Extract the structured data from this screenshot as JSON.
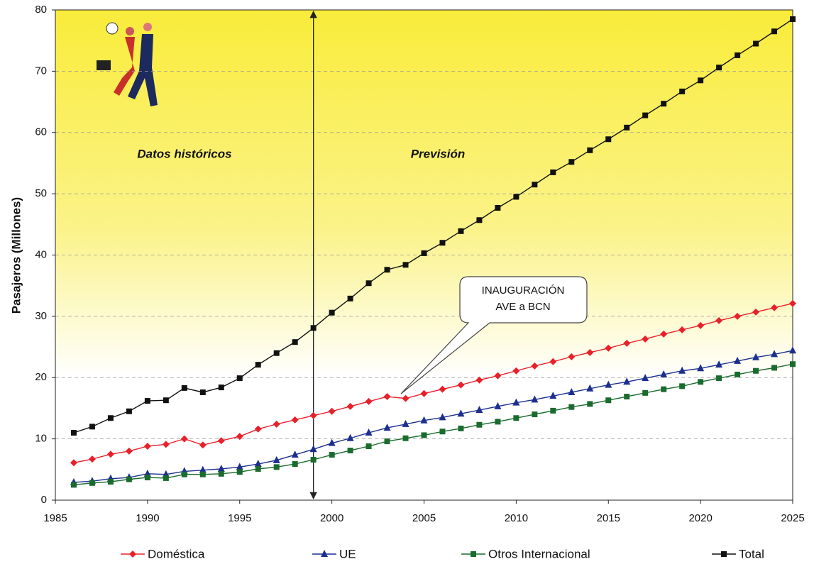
{
  "chart_data": {
    "type": "line",
    "y_label": "Pasajeros (Millones)",
    "annotations": [
      "Datos históricos",
      "Previsión"
    ],
    "callout": [
      "INAUGURACIÓN",
      "AVE a BCN"
    ],
    "forecast_start": 1999,
    "x": [
      1986,
      1987,
      1988,
      1989,
      1990,
      1991,
      1992,
      1993,
      1994,
      1995,
      1996,
      1997,
      1998,
      1999,
      2000,
      2001,
      2002,
      2003,
      2004,
      2005,
      2006,
      2007,
      2008,
      2009,
      2010,
      2011,
      2012,
      2013,
      2014,
      2015,
      2016,
      2017,
      2018,
      2019,
      2020,
      2021,
      2022,
      2023,
      2024,
      2025
    ],
    "series": [
      {
        "name": "Doméstica",
        "color": "#e8202a",
        "marker": "diamond",
        "values": [
          6.1,
          6.7,
          7.5,
          8.0,
          8.8,
          9.1,
          10.0,
          9.0,
          9.7,
          10.4,
          11.6,
          12.4,
          13.1,
          13.8,
          14.5,
          15.3,
          16.1,
          16.9,
          16.6,
          17.4,
          18.1,
          18.8,
          19.6,
          20.3,
          21.1,
          21.9,
          22.6,
          23.4,
          24.1,
          24.8,
          25.6,
          26.3,
          27.1,
          27.8,
          28.5,
          29.3,
          30.0,
          30.7,
          31.4,
          32.1
        ]
      },
      {
        "name": "UE",
        "color": "#1c2f8f",
        "marker": "triangle",
        "values": [
          2.9,
          3.1,
          3.5,
          3.7,
          4.3,
          4.2,
          4.7,
          4.9,
          5.1,
          5.4,
          5.9,
          6.5,
          7.4,
          8.3,
          9.3,
          10.1,
          11.0,
          11.8,
          12.4,
          13.0,
          13.5,
          14.1,
          14.7,
          15.3,
          15.9,
          16.4,
          17.0,
          17.6,
          18.2,
          18.8,
          19.3,
          19.9,
          20.5,
          21.1,
          21.5,
          22.1,
          22.7,
          23.3,
          23.8,
          24.4
        ]
      },
      {
        "name": "Otros Internacional",
        "color": "#1a6b2e",
        "marker": "square",
        "values": [
          2.5,
          2.8,
          3.0,
          3.4,
          3.7,
          3.6,
          4.2,
          4.2,
          4.3,
          4.6,
          5.1,
          5.4,
          5.9,
          6.6,
          7.4,
          8.1,
          8.8,
          9.6,
          10.1,
          10.6,
          11.2,
          11.7,
          12.3,
          12.8,
          13.4,
          14.0,
          14.6,
          15.2,
          15.7,
          16.3,
          16.9,
          17.5,
          18.1,
          18.6,
          19.3,
          19.9,
          20.5,
          21.1,
          21.6,
          22.2
        ]
      },
      {
        "name": "Total",
        "color": "#111111",
        "marker": "square",
        "values": [
          11.0,
          12.0,
          13.4,
          14.5,
          16.2,
          16.3,
          18.3,
          17.6,
          18.4,
          19.9,
          22.1,
          24.0,
          25.8,
          28.1,
          30.6,
          32.9,
          35.4,
          37.6,
          38.4,
          40.3,
          42.0,
          43.9,
          45.7,
          47.7,
          49.5,
          51.5,
          53.5,
          55.2,
          57.1,
          58.9,
          60.8,
          62.8,
          64.7,
          66.7,
          68.5,
          70.6,
          72.6,
          74.5,
          76.5,
          78.5
        ]
      }
    ],
    "xlim": [
      1985,
      2025
    ],
    "xticks": [
      1985,
      1990,
      1995,
      2000,
      2005,
      2010,
      2015,
      2020,
      2025
    ],
    "ylim": [
      0,
      80
    ],
    "yticks": [
      0,
      10,
      20,
      30,
      40,
      50,
      60,
      70,
      80
    ],
    "grid": true
  }
}
